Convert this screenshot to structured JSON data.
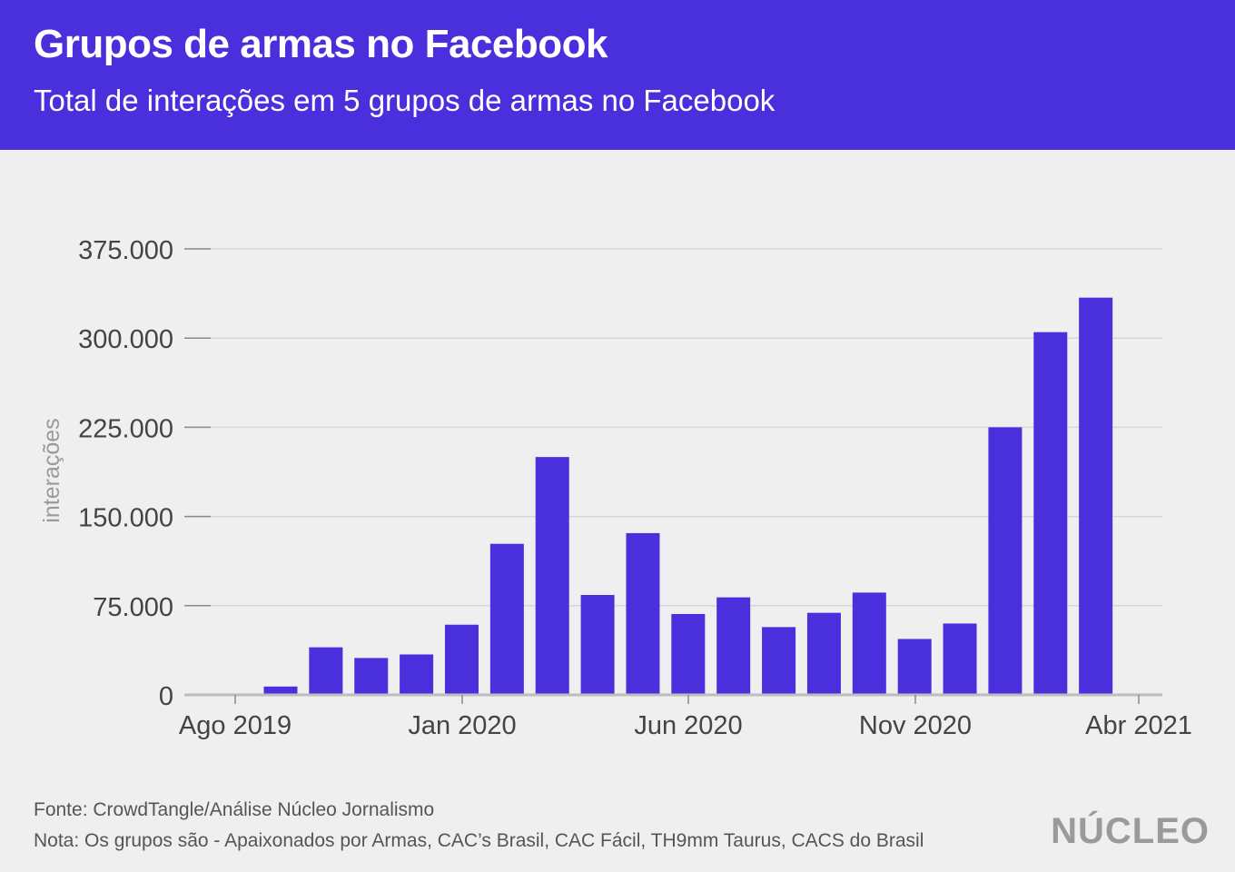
{
  "header": {
    "title": "Grupos de armas no Facebook",
    "subtitle": "Total de interações em 5 grupos de armas no Facebook"
  },
  "chart_data": {
    "type": "bar",
    "title": "Grupos de armas no Facebook",
    "subtitle": "Total de interações em 5 grupos de armas no Facebook",
    "xlabel": "",
    "ylabel": "interações",
    "ylim": [
      0,
      375000
    ],
    "yticks": [
      0,
      75000,
      150000,
      225000,
      300000,
      375000
    ],
    "ytick_labels": [
      "0",
      "75.000",
      "150.000",
      "225.000",
      "300.000",
      "375.000"
    ],
    "xtick_labels": [
      "Ago 2019",
      "Jan 2020",
      "Jun 2020",
      "Nov 2020",
      "Abr 2021"
    ],
    "grid": true,
    "legend": "none",
    "bar_color": "#4a2fdd",
    "categories": [
      "Set 2019",
      "Out 2019",
      "Nov 2019",
      "Dez 2019",
      "Jan 2020",
      "Fev 2020",
      "Mar 2020",
      "Abr 2020",
      "Mai 2020",
      "Jun 2020",
      "Jul 2020",
      "Ago 2020",
      "Set 2020",
      "Out 2020",
      "Nov 2020",
      "Dez 2020",
      "Jan 2021",
      "Fev 2021",
      "Mar 2021"
    ],
    "values": [
      7000,
      40000,
      31000,
      34000,
      59000,
      127000,
      200000,
      84000,
      136000,
      68000,
      82000,
      57000,
      69000,
      86000,
      47000,
      60000,
      225000,
      305000,
      334000
    ]
  },
  "footer": {
    "source": "Fonte: CrowdTangle/Análise Núcleo Jornalismo",
    "note": "Nota: Os grupos são - Apaixonados por Armas, CAC’s Brasil, CAC Fácil, TH9mm Taurus, CACS do Brasil",
    "logo": "NÚCLEO"
  }
}
